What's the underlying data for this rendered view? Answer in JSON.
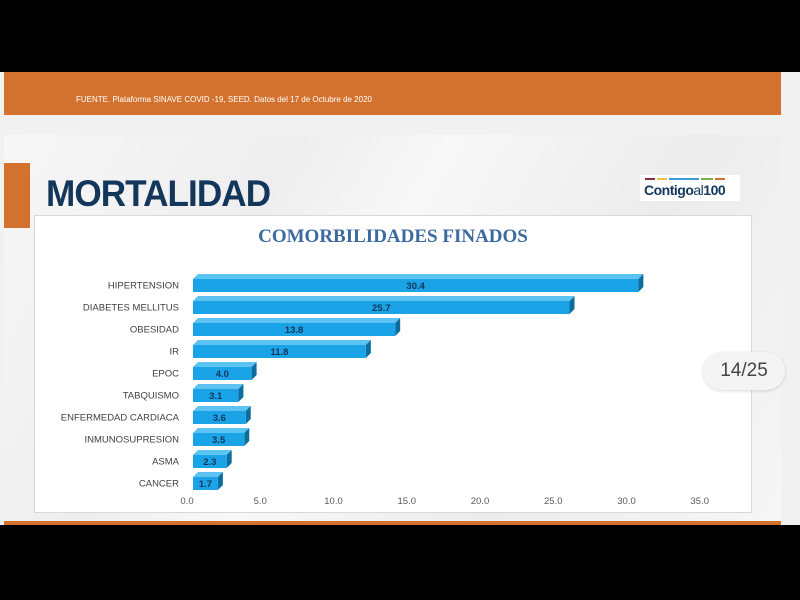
{
  "banner": {
    "source": "FUENTE. Plataforma SINAVE COVID -19, SEED. Datos del 17 de Octubre de 2020"
  },
  "slide": {
    "title": "MORTALIDAD",
    "logo": "Contigo al 100"
  },
  "pager": {
    "label": "14/25"
  },
  "colors": {
    "orange": "#d2722e",
    "navy": "#13365b",
    "bar": "#1aa3e6",
    "bar_side": "#0d6e9e"
  },
  "chart_data": {
    "type": "bar",
    "orientation": "horizontal",
    "style": "3d",
    "title": "COMORBILIDADES FINADOS",
    "categories": [
      "HIPERTENSION",
      "DIABETES MELLITUS",
      "OBESIDAD",
      "IR",
      "EPOC",
      "TABQUISMO",
      "ENFERMEDAD CARDIACA",
      "INMUNOSUPRESION",
      "ASMA",
      "CANCER"
    ],
    "values": [
      30.4,
      25.7,
      13.8,
      11.8,
      4.0,
      3.1,
      3.6,
      3.5,
      2.3,
      1.7
    ],
    "labels": [
      "30.4",
      "25.7",
      "13.8",
      "11.8",
      "4.0",
      "3.1",
      "3.6",
      "3.5",
      "2.3",
      "1.7"
    ],
    "xticks": [
      "0.0",
      "5.0",
      "10.0",
      "15.0",
      "20.0",
      "25.0",
      "30.0",
      "35.0"
    ],
    "xlim": [
      0,
      35
    ],
    "grid": false,
    "legend": "none"
  }
}
